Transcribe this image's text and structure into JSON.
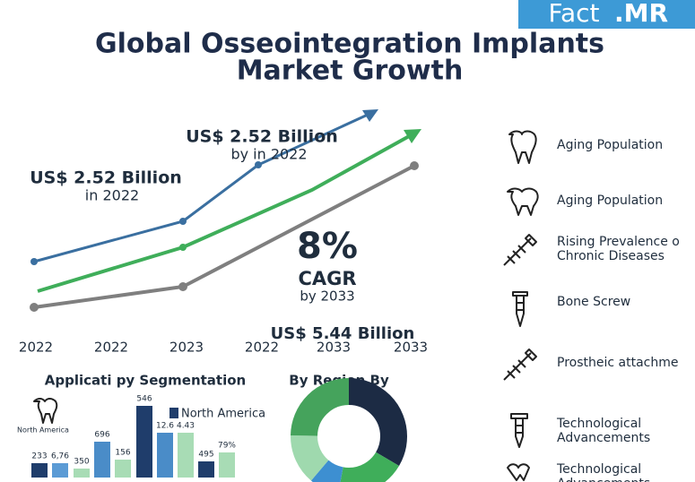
{
  "brand": {
    "name": "Fact",
    "suffix": ".MR"
  },
  "header": {
    "title_lines": [
      "Global Osseointegration Implants",
      "Market Growth"
    ]
  },
  "growth": {
    "annotations": [
      "US$ 2.52 Billion",
      "by in 2022",
      "US$ 2.52 Billion",
      "in 2022",
      "8%",
      "CAGR",
      "by 2033",
      "US$ 5.44 Billion"
    ],
    "x_labels": [
      "2022",
      "2022",
      "2023",
      "2022",
      "2033",
      "2033"
    ]
  },
  "drivers": [
    {
      "lines": [
        "Aging Population"
      ]
    },
    {
      "lines": [
        "Aging Population"
      ]
    },
    {
      "lines": [
        "Rising Prevalence o",
        "Chronic Diseases"
      ]
    },
    {
      "lines": [
        "Bone Screw"
      ]
    },
    {
      "lines": [
        "Prostheic attachme"
      ]
    },
    {
      "lines": [
        "Technological",
        "Advancements"
      ]
    },
    {
      "lines": [
        "Technological",
        "Advancements"
      ]
    }
  ],
  "segmentation": {
    "title": "Applicati py Segmentation",
    "icon_label": "North America",
    "legend": "North America",
    "bar_labels": [
      "233",
      "6,76",
      "350",
      "696",
      "156",
      "546",
      "12.6",
      "4.43",
      "495",
      "79%"
    ]
  },
  "region": {
    "title": "By Region By"
  }
}
